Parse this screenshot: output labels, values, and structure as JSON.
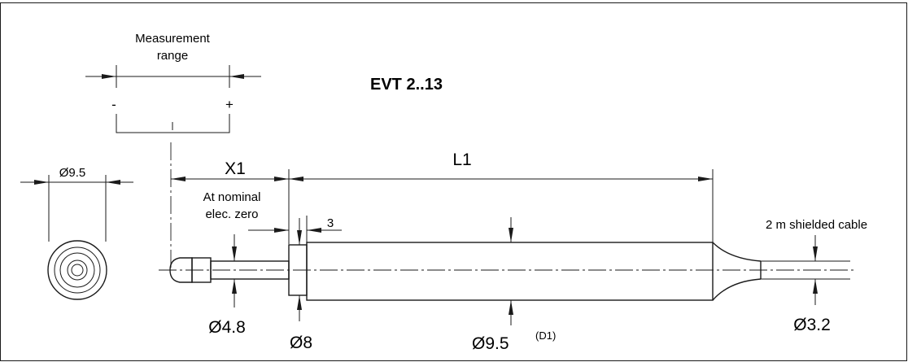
{
  "title": "EVT 2..13",
  "measurement_range": {
    "line1": "Measurement",
    "line2": "range",
    "minus": "-",
    "plus": "+"
  },
  "labels": {
    "x1": "X1",
    "l1": "L1",
    "nominal_line1": "At nominal",
    "nominal_line2": "elec. zero",
    "step_length": "3",
    "cable": "2 m shielded cable"
  },
  "diameters": {
    "end_view": "Ø9.5",
    "tip": "Ø4.8",
    "collar": "Ø8",
    "body": "Ø9.5",
    "body_ref": "(D1)",
    "cable": "Ø3.2"
  }
}
